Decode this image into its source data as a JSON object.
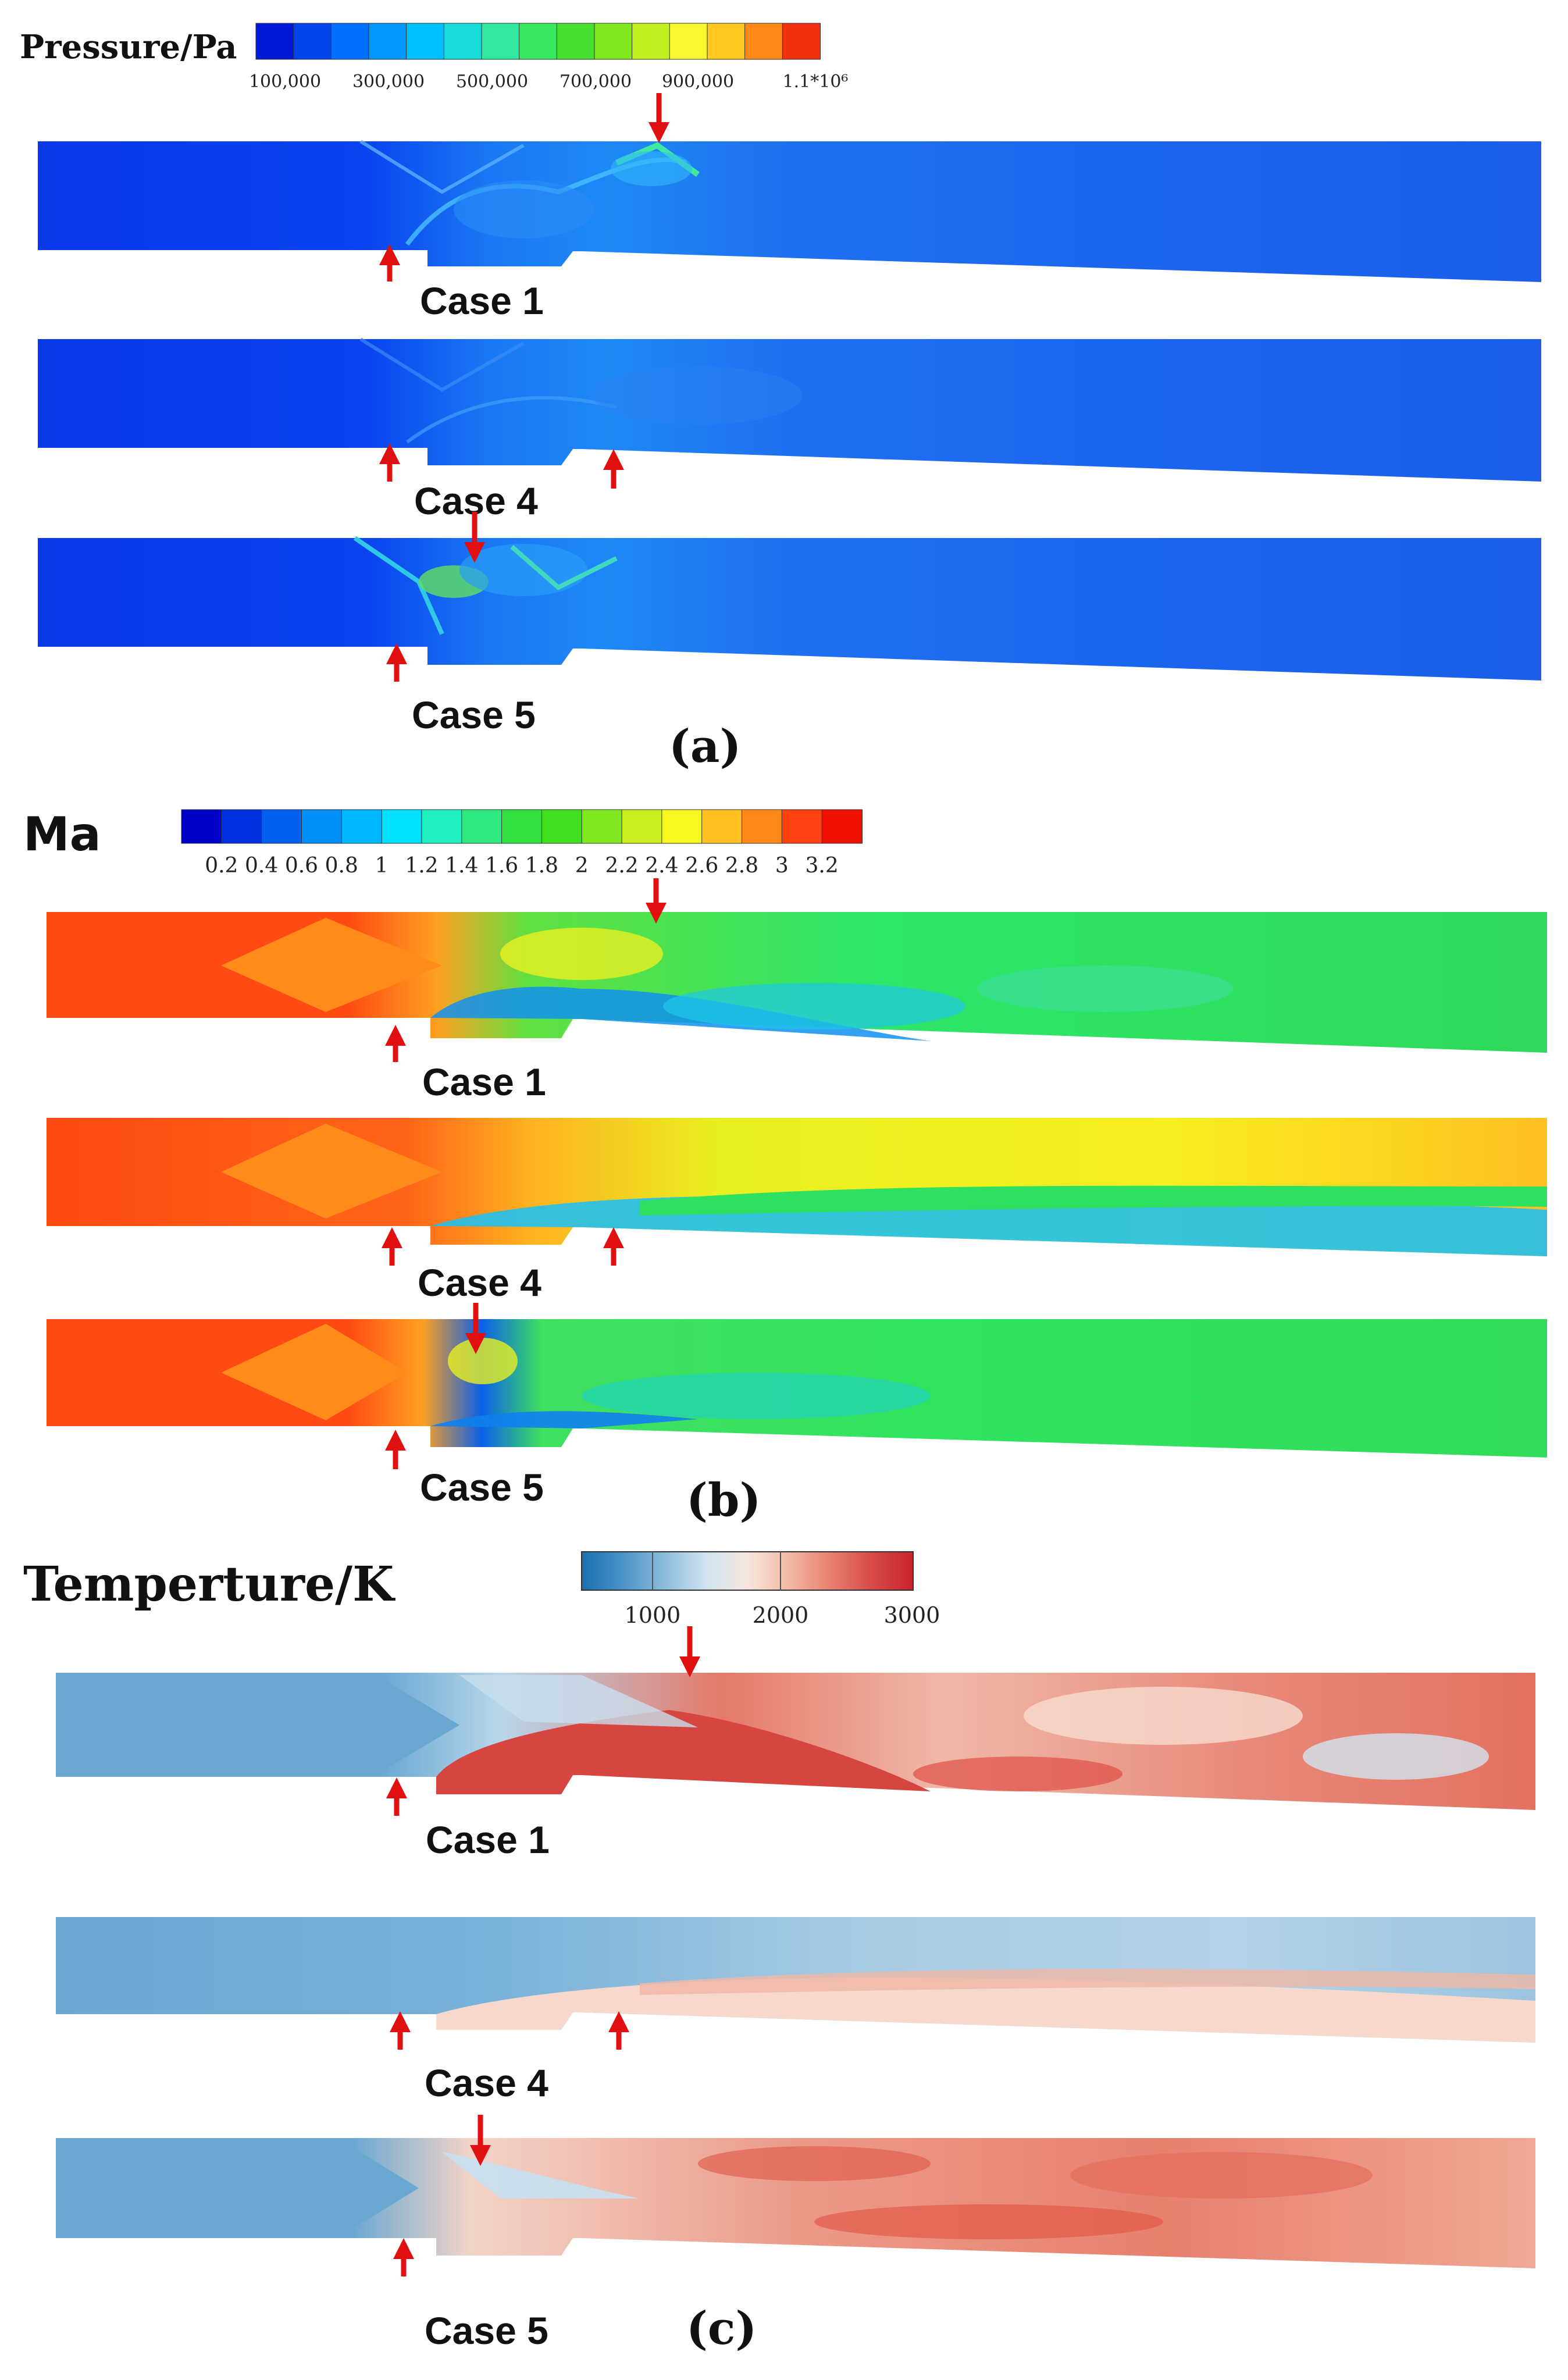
{
  "panels": [
    {
      "label": "(a)",
      "variable_title": "Pressure/Pa",
      "colorbar_ticks": [
        "100,000",
        "300,000",
        "500,000",
        "700,000",
        "900,000",
        "1.1*10⁶"
      ],
      "colorbar_colors": [
        "#0018d8",
        "#0044ee",
        "#0070ff",
        "#0098ff",
        "#00c0ff",
        "#18dcd8",
        "#30e8a0",
        "#38e860",
        "#48e030",
        "#80e820",
        "#c0f020",
        "#f8f830",
        "#ffc820",
        "#ff8818",
        "#f03010"
      ],
      "cases": [
        "Case 1",
        "Case 4",
        "Case 5"
      ]
    },
    {
      "label": "(b)",
      "variable_title": "Ma",
      "colorbar_ticks": [
        "0.2",
        "0.4",
        "0.6",
        "0.8",
        "1",
        "1.2",
        "1.4",
        "1.6",
        "1.8",
        "2",
        "2.2",
        "2.4",
        "2.6",
        "2.8",
        "3",
        "3.2"
      ],
      "colorbar_colors": [
        "#0000c8",
        "#0030e0",
        "#0060f0",
        "#0090f8",
        "#00b8ff",
        "#00e0ff",
        "#20f0c0",
        "#30e880",
        "#30e040",
        "#40e020",
        "#80e820",
        "#c8f020",
        "#f8f820",
        "#ffc020",
        "#ff8818",
        "#ff4010",
        "#f01000"
      ],
      "cases": [
        "Case 1",
        "Case 4",
        "Case 5"
      ]
    },
    {
      "label": "(c)",
      "variable_title": "Temperture/K",
      "colorbar_ticks": [
        "1000",
        "2000",
        "3000"
      ],
      "colorbar_colors": [
        "#1a6fb0",
        "#4a93c8",
        "#8cbcdc",
        "#cfe3ef",
        "#f7e6df",
        "#f3b9a4",
        "#e88070",
        "#d84a48",
        "#c8242c"
      ],
      "cases": [
        "Case 1",
        "Case 4",
        "Case 5"
      ]
    }
  ]
}
